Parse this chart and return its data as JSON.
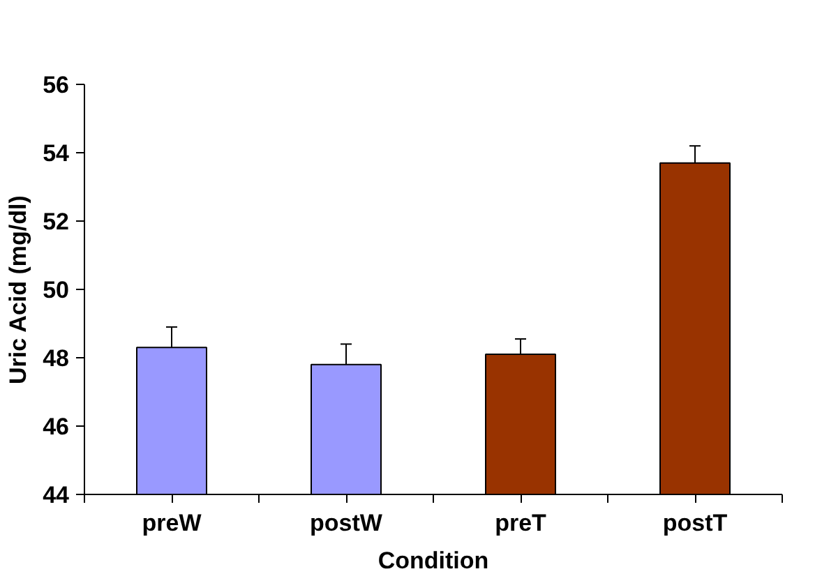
{
  "chart_data": {
    "type": "bar",
    "xlabel": "Condition",
    "ylabel": "Uric Acid (mg/dl)",
    "categories": [
      "preW",
      "postW",
      "preT",
      "postT"
    ],
    "values": [
      48.3,
      47.8,
      48.1,
      53.7
    ],
    "colors": [
      "#9999ff",
      "#9999ff",
      "#993300",
      "#993300"
    ],
    "errors": [
      [
        48.3,
        48.9
      ],
      [
        47.8,
        48.4
      ],
      [
        48.1,
        48.55
      ],
      [
        53.7,
        54.2
      ]
    ],
    "ylim": [
      44,
      56
    ],
    "yticks": [
      44,
      46,
      48,
      50,
      52,
      54,
      56
    ],
    "grid": false
  }
}
